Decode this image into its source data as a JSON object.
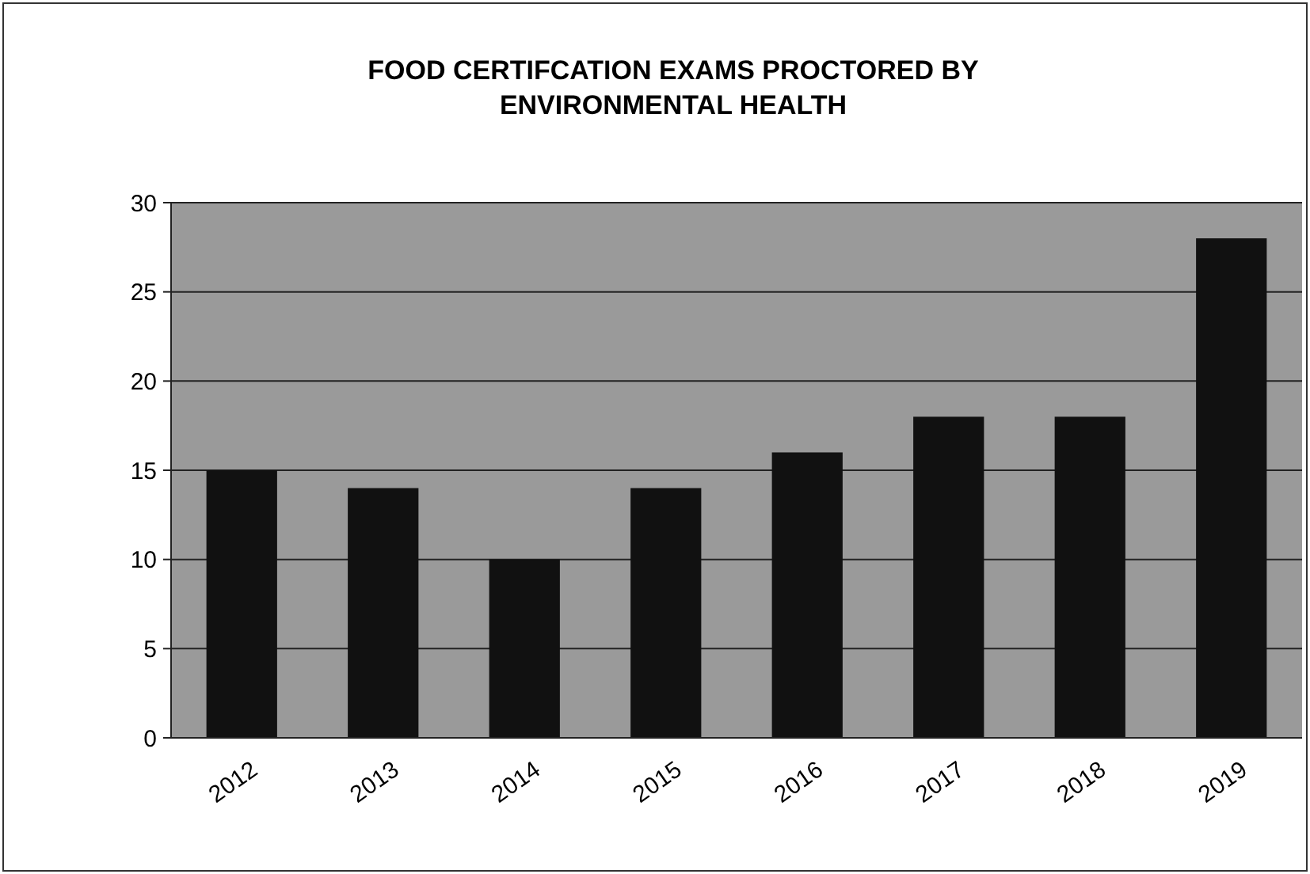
{
  "chart_data": {
    "type": "bar",
    "title": "FOOD CERTIFCATION EXAMS PROCTORED BY\nENVIRONMENTAL HEALTH",
    "categories": [
      "2012",
      "2013",
      "2014",
      "2015",
      "2016",
      "2017",
      "2018",
      "2019"
    ],
    "values": [
      15,
      14,
      10,
      14,
      16,
      18,
      18,
      28
    ],
    "color": "#111111",
    "ylim": [
      0,
      30
    ],
    "yticks": [
      0,
      5,
      10,
      15,
      20,
      25,
      30
    ],
    "grid": "y"
  }
}
